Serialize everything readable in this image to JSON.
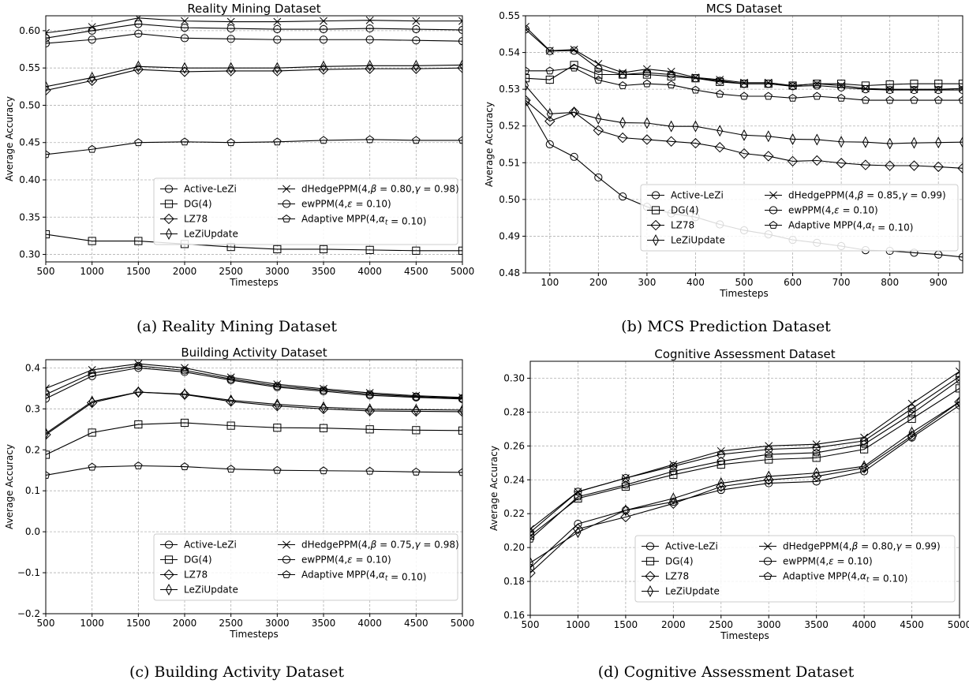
{
  "colors": {
    "line": "#000000",
    "grid": "#b0b0b0",
    "background": "#ffffff",
    "legend_border": "#cccccc"
  },
  "chart_data": [
    {
      "type": "line",
      "title": "Reality Mining Dataset",
      "caption": "(a) Reality Mining Dataset",
      "xlabel": "Timesteps",
      "ylabel": "Average Accuracy",
      "xlim": [
        500,
        5000
      ],
      "ylim": [
        0.29,
        0.62
      ],
      "xticks": [
        500,
        1000,
        1500,
        2000,
        2500,
        3000,
        3500,
        4000,
        4500,
        5000
      ],
      "xtick_labels": [
        "500",
        "1000",
        "1500",
        "2000",
        "2500",
        "3000",
        "3500",
        "4000",
        "4500",
        "5000"
      ],
      "yticks": [
        0.3,
        0.35,
        0.4,
        0.45,
        0.5,
        0.55,
        0.6
      ],
      "ytick_labels": [
        "0.30",
        "0.35",
        "0.40",
        "0.45",
        "0.50",
        "0.55",
        "0.60"
      ],
      "grid": true,
      "legend_position": "lower-right",
      "x": [
        500,
        1000,
        1500,
        2000,
        2500,
        3000,
        3500,
        4000,
        4500,
        5000
      ],
      "series": [
        {
          "name": "Active-LeZi",
          "marker": "circle",
          "values": [
            0.583,
            0.588,
            0.596,
            0.59,
            0.589,
            0.588,
            0.588,
            0.588,
            0.587,
            0.586
          ]
        },
        {
          "name": "DG(4)",
          "marker": "square",
          "values": [
            0.327,
            0.318,
            0.318,
            0.314,
            0.31,
            0.307,
            0.307,
            0.306,
            0.305,
            0.305
          ]
        },
        {
          "name": "LZ78",
          "marker": "diamond",
          "values": [
            0.52,
            0.533,
            0.548,
            0.545,
            0.546,
            0.546,
            0.548,
            0.549,
            0.549,
            0.55
          ]
        },
        {
          "name": "LeZiUpdate",
          "marker": "thin_diamond",
          "values": [
            0.525,
            0.537,
            0.552,
            0.55,
            0.55,
            0.55,
            0.552,
            0.553,
            0.553,
            0.554
          ]
        },
        {
          "name": "dHedgePPM(4,β = 0.80,γ = 0.98)",
          "marker": "x",
          "values": [
            0.597,
            0.605,
            0.617,
            0.613,
            0.612,
            0.612,
            0.613,
            0.614,
            0.613,
            0.613
          ]
        },
        {
          "name": "ewPPM(4,ε = 0.10)",
          "marker": "half_circle",
          "values": [
            0.59,
            0.6,
            0.609,
            0.604,
            0.603,
            0.602,
            0.602,
            0.603,
            0.602,
            0.601
          ]
        },
        {
          "name": "Adaptive MPP(4,αt = 0.10)",
          "marker": "pentagon",
          "values": [
            0.434,
            0.441,
            0.45,
            0.451,
            0.45,
            0.451,
            0.453,
            0.454,
            0.453,
            0.453
          ]
        }
      ]
    },
    {
      "type": "line",
      "title": "MCS Dataset",
      "caption": "(b) MCS Prediction Dataset",
      "xlabel": "Timesteps",
      "ylabel": "Average Accuracy",
      "xlim": [
        50,
        950
      ],
      "ylim": [
        0.48,
        0.55
      ],
      "xticks": [
        100,
        200,
        300,
        400,
        500,
        600,
        700,
        800,
        900
      ],
      "xtick_labels": [
        "100",
        "200",
        "300",
        "400",
        "500",
        "600",
        "700",
        "800",
        "900"
      ],
      "yticks": [
        0.48,
        0.49,
        0.5,
        0.51,
        0.52,
        0.53,
        0.54,
        0.55
      ],
      "ytick_labels": [
        "0.48",
        "0.49",
        "0.50",
        "0.51",
        "0.52",
        "0.53",
        "0.54",
        "0.55"
      ],
      "grid": true,
      "legend_position": "lower-right",
      "x": [
        50,
        100,
        150,
        200,
        250,
        300,
        350,
        400,
        450,
        500,
        550,
        600,
        650,
        700,
        750,
        800,
        850,
        900,
        950
      ],
      "series": [
        {
          "name": "Active-LeZi",
          "marker": "circle",
          "values": [
            0.5265,
            0.515,
            0.5116,
            0.506,
            0.5008,
            0.498,
            0.4962,
            0.4952,
            0.4932,
            0.4916,
            0.4905,
            0.489,
            0.4882,
            0.4873,
            0.4862,
            0.486,
            0.4855,
            0.485,
            0.4843
          ]
        },
        {
          "name": "DG(4)",
          "marker": "square",
          "values": [
            0.533,
            0.5326,
            0.5366,
            0.534,
            0.534,
            0.534,
            0.5335,
            0.533,
            0.532,
            0.5315,
            0.5315,
            0.531,
            0.5315,
            0.5315,
            0.531,
            0.5313,
            0.5315,
            0.5315,
            0.5315
          ]
        },
        {
          "name": "LZ78",
          "marker": "diamond",
          "values": [
            0.527,
            0.5213,
            0.5238,
            0.5188,
            0.5168,
            0.5163,
            0.5158,
            0.5153,
            0.5142,
            0.5125,
            0.5118,
            0.5104,
            0.5106,
            0.5099,
            0.5094,
            0.5092,
            0.5092,
            0.5089,
            0.5085
          ]
        },
        {
          "name": "LeZiUpdate",
          "marker": "thin_diamond",
          "values": [
            0.531,
            0.5233,
            0.5237,
            0.522,
            0.5209,
            0.5208,
            0.5199,
            0.5199,
            0.5187,
            0.5175,
            0.5172,
            0.5164,
            0.5163,
            0.5157,
            0.5156,
            0.5152,
            0.5154,
            0.5155,
            0.5156
          ]
        },
        {
          "name": "dHedgePPM(4,β = 0.85,γ = 0.99)",
          "marker": "x",
          "values": [
            0.547,
            0.5405,
            0.5408,
            0.5369,
            0.5345,
            0.5355,
            0.5348,
            0.5332,
            0.5326,
            0.5318,
            0.5318,
            0.531,
            0.5315,
            0.531,
            0.5302,
            0.53,
            0.53,
            0.53,
            0.5302
          ]
        },
        {
          "name": "ewPPM(4,ε = 0.10)",
          "marker": "half_circle",
          "values": [
            0.5463,
            0.5404,
            0.5405,
            0.5356,
            0.534,
            0.5345,
            0.534,
            0.533,
            0.5323,
            0.5315,
            0.5315,
            0.5308,
            0.531,
            0.5305,
            0.53,
            0.5298,
            0.5298,
            0.5298,
            0.5298
          ]
        },
        {
          "name": "Adaptive MPP(4,αt = 0.10)",
          "marker": "pentagon",
          "values": [
            0.535,
            0.535,
            0.5358,
            0.5325,
            0.531,
            0.5315,
            0.5312,
            0.5298,
            0.5287,
            0.5281,
            0.5281,
            0.5276,
            0.5281,
            0.5276,
            0.527,
            0.527,
            0.527,
            0.527,
            0.527
          ]
        }
      ]
    },
    {
      "type": "line",
      "title": "Building Activity Dataset",
      "caption": "(c) Building Activity Dataset",
      "xlabel": "Timesteps",
      "ylabel": "Average Accuracy",
      "xlim": [
        500,
        5000
      ],
      "ylim": [
        -0.2,
        0.42
      ],
      "xticks": [
        500,
        1000,
        1500,
        2000,
        2500,
        3000,
        3500,
        4000,
        4500,
        5000
      ],
      "xtick_labels": [
        "500",
        "1000",
        "1500",
        "2000",
        "2500",
        "3000",
        "3500",
        "4000",
        "4500",
        "5000"
      ],
      "yticks": [
        -0.2,
        -0.1,
        0.0,
        0.1,
        0.2,
        0.3,
        0.4
      ],
      "ytick_labels": [
        "−0.2",
        "−0.1",
        "0.0",
        "0.1",
        "0.2",
        "0.3",
        "0.4"
      ],
      "grid": true,
      "legend_position": "lower-right",
      "x": [
        500,
        1000,
        1500,
        2000,
        2500,
        3000,
        3500,
        4000,
        4500,
        5000
      ],
      "series": [
        {
          "name": "Active-LeZi",
          "marker": "circle",
          "values": [
            0.325,
            0.38,
            0.4,
            0.39,
            0.37,
            0.353,
            0.343,
            0.333,
            0.328,
            0.324
          ]
        },
        {
          "name": "DG(4)",
          "marker": "square",
          "values": [
            0.188,
            0.242,
            0.262,
            0.266,
            0.259,
            0.254,
            0.253,
            0.25,
            0.248,
            0.247
          ]
        },
        {
          "name": "LZ78",
          "marker": "diamond",
          "values": [
            0.237,
            0.315,
            0.341,
            0.335,
            0.318,
            0.307,
            0.3,
            0.295,
            0.294,
            0.293
          ]
        },
        {
          "name": "LeZiUpdate",
          "marker": "thin_diamond",
          "values": [
            0.24,
            0.318,
            0.341,
            0.336,
            0.321,
            0.311,
            0.304,
            0.299,
            0.298,
            0.297
          ]
        },
        {
          "name": "dHedgePPM(4,β = 0.75,γ = 0.98)",
          "marker": "x",
          "values": [
            0.35,
            0.395,
            0.41,
            0.4,
            0.377,
            0.36,
            0.349,
            0.339,
            0.332,
            0.328
          ]
        },
        {
          "name": "ewPPM(4,ε = 0.10)",
          "marker": "half_circle",
          "values": [
            0.335,
            0.387,
            0.405,
            0.394,
            0.373,
            0.356,
            0.346,
            0.336,
            0.33,
            0.326
          ]
        },
        {
          "name": "Adaptive MPP(4,αt = 0.10)",
          "marker": "pentagon",
          "values": [
            0.138,
            0.158,
            0.161,
            0.159,
            0.153,
            0.15,
            0.149,
            0.148,
            0.146,
            0.145
          ]
        }
      ]
    },
    {
      "type": "line",
      "title": "Cognitive Assessment Dataset",
      "caption": "(d) Cognitive Assessment Dataset",
      "xlabel": "Timesteps",
      "ylabel": "Average Accuracy",
      "xlim": [
        500,
        5000
      ],
      "ylim": [
        0.16,
        0.31
      ],
      "xticks": [
        500,
        1000,
        1500,
        2000,
        2500,
        3000,
        3500,
        4000,
        4500,
        5000
      ],
      "xtick_labels": [
        "500",
        "1000",
        "1500",
        "2000",
        "2500",
        "3000",
        "3500",
        "4000",
        "4500",
        "5000"
      ],
      "yticks": [
        0.16,
        0.18,
        0.2,
        0.22,
        0.24,
        0.26,
        0.28,
        0.3
      ],
      "ytick_labels": [
        "0.16",
        "0.18",
        "0.20",
        "0.22",
        "0.24",
        "0.26",
        "0.28",
        "0.30"
      ],
      "grid": true,
      "legend_position": "lower-right",
      "x": [
        500,
        1000,
        1500,
        2000,
        2500,
        3000,
        3500,
        4000,
        4500,
        5000
      ],
      "series": [
        {
          "name": "Active-LeZi",
          "marker": "circle",
          "values": [
            0.188,
            0.214,
            0.222,
            0.227,
            0.234,
            0.238,
            0.239,
            0.245,
            0.265,
            0.284
          ]
        },
        {
          "name": "DG(4)",
          "marker": "square",
          "values": [
            0.207,
            0.229,
            0.236,
            0.243,
            0.249,
            0.252,
            0.253,
            0.258,
            0.276,
            0.294
          ]
        },
        {
          "name": "LZ78",
          "marker": "diamond",
          "values": [
            0.185,
            0.211,
            0.218,
            0.226,
            0.236,
            0.24,
            0.242,
            0.247,
            0.266,
            0.286
          ]
        },
        {
          "name": "LeZiUpdate",
          "marker": "thin_diamond",
          "values": [
            0.191,
            0.209,
            0.222,
            0.229,
            0.238,
            0.242,
            0.244,
            0.248,
            0.268,
            0.286
          ]
        },
        {
          "name": "dHedgePPM(4,β = 0.80,γ = 0.99)",
          "marker": "x",
          "values": [
            0.211,
            0.233,
            0.241,
            0.249,
            0.257,
            0.26,
            0.261,
            0.265,
            0.285,
            0.304
          ]
        },
        {
          "name": "ewPPM(4,ε = 0.10)",
          "marker": "half_circle",
          "values": [
            0.209,
            0.233,
            0.241,
            0.248,
            0.255,
            0.258,
            0.259,
            0.263,
            0.282,
            0.301
          ]
        },
        {
          "name": "Adaptive MPP(4,αt = 0.10)",
          "marker": "pentagon",
          "values": [
            0.205,
            0.23,
            0.237,
            0.245,
            0.251,
            0.255,
            0.256,
            0.261,
            0.279,
            0.299
          ]
        }
      ]
    }
  ]
}
